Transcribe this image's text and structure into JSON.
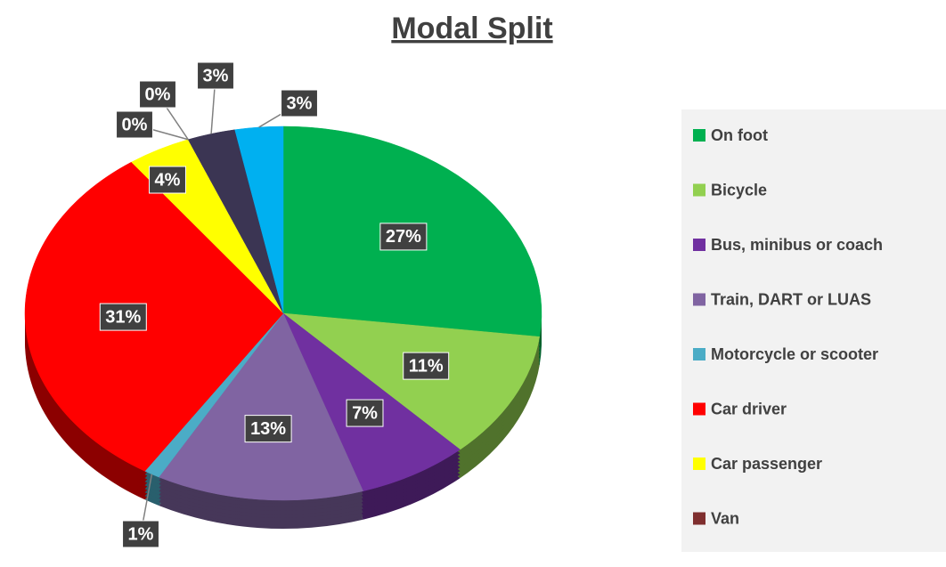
{
  "chart_data": {
    "type": "pie",
    "title": "Modal Split",
    "categories": [
      "On foot",
      "Bicycle",
      "Bus, minibus or coach",
      "Train, DART or LUAS",
      "Motorcycle or scooter",
      "Car driver",
      "Car passenger",
      "Van",
      null,
      null,
      null
    ],
    "values": [
      27,
      11,
      7,
      13,
      1,
      31,
      4,
      0,
      0,
      3,
      3
    ],
    "value_labels": [
      "27%",
      "11%",
      "7%",
      "13%",
      "1%",
      "31%",
      "4%",
      "0%",
      "0%",
      "3%",
      "3%"
    ],
    "colors": [
      "#00b050",
      "#92d050",
      "#7030a0",
      "#8064a2",
      "#4bacc6",
      "#ff0000",
      "#ffff00",
      "#7f2f2f",
      "#a6a6a6",
      "#3b3553",
      "#00b0f0"
    ],
    "legend": "right"
  }
}
